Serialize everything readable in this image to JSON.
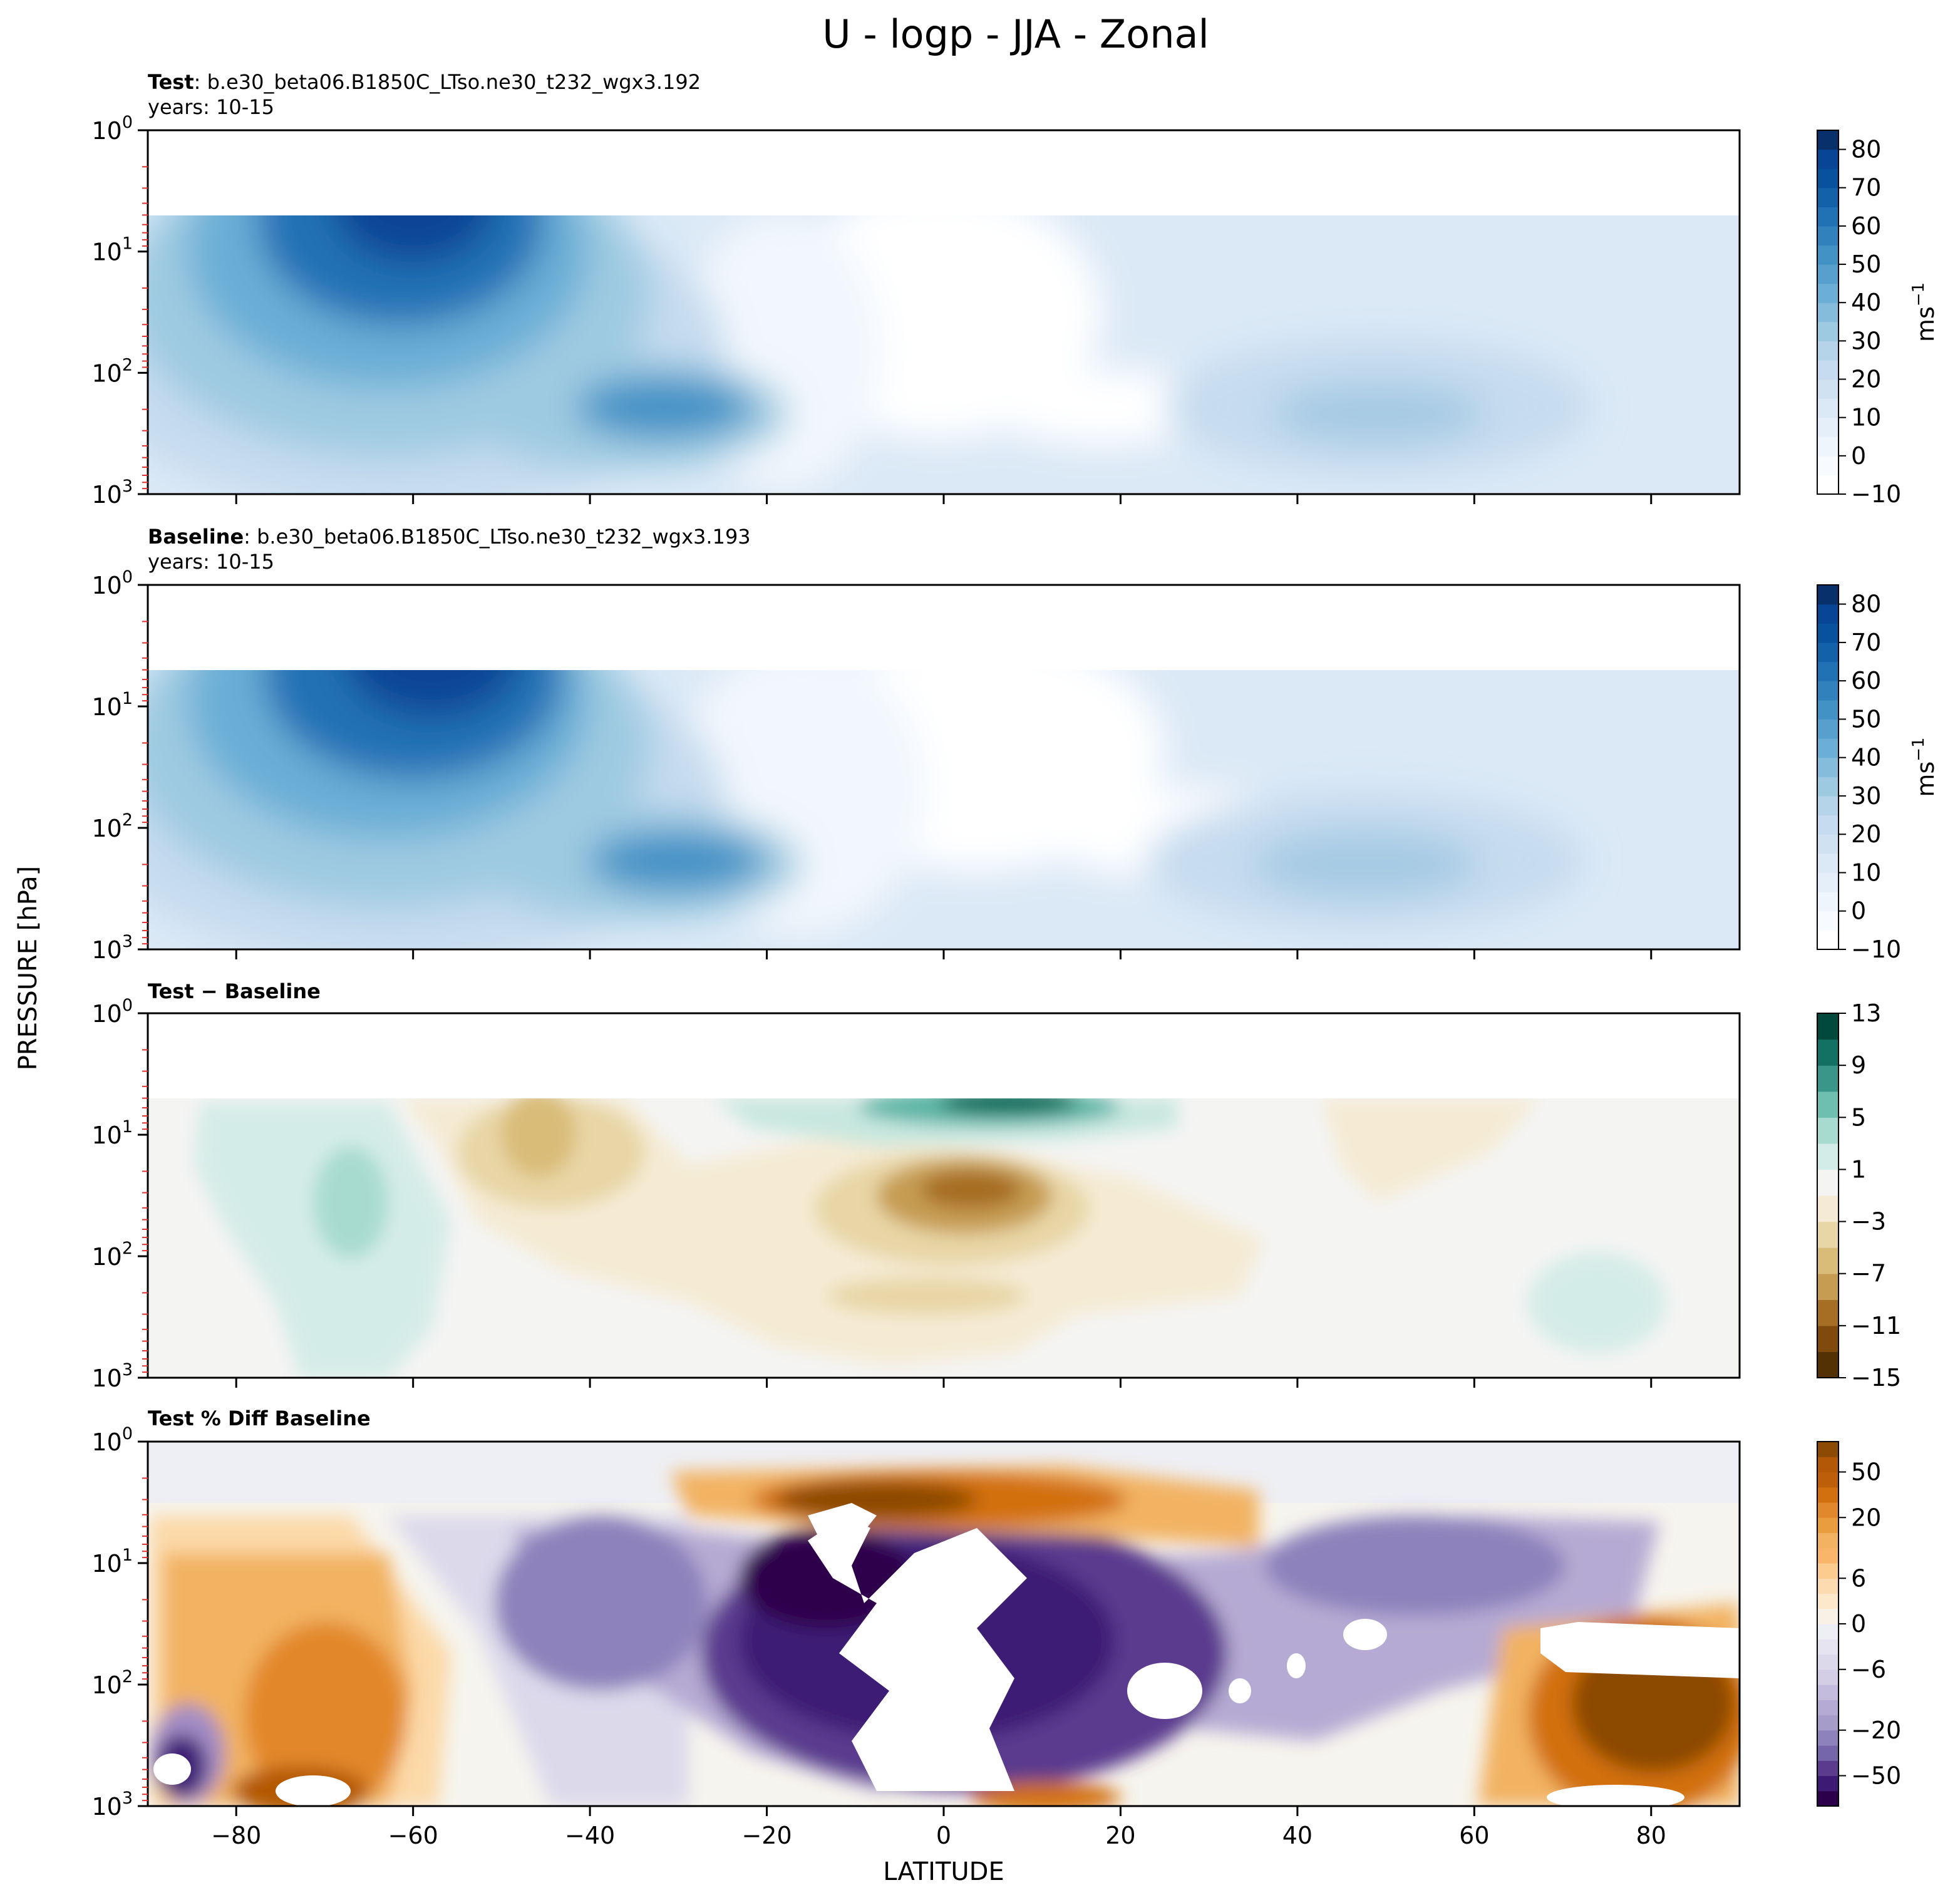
{
  "chart_data": {
    "type": "contour",
    "title": "U - logp - JJA - Zonal",
    "xlabel": "LATITUDE",
    "ylabel": "PRESSURE [hPa]",
    "xlim": [
      -90,
      90
    ],
    "xticks": [
      -80,
      -60,
      -40,
      -20,
      0,
      20,
      40,
      60,
      80
    ],
    "xtick_labels": [
      "−80",
      "−60",
      "−40",
      "−20",
      "0",
      "20",
      "40",
      "60",
      "80"
    ],
    "ylim_hPa": [
      1000,
      1
    ],
    "ytick_labels": [
      {
        "base": "10",
        "exp": "0"
      },
      {
        "base": "10",
        "exp": "1"
      },
      {
        "base": "10",
        "exp": "2"
      },
      {
        "base": "10",
        "exp": "3"
      }
    ],
    "panels": [
      {
        "id": "test",
        "title_bold": "Test",
        "title_rest": ": b.e30_beta06.B1850C_LTso.ne30_t232_wgx3.192",
        "years": "years: 10-15",
        "colormap": "Blues",
        "colorbar_levels": [
          -10,
          -5,
          0,
          5,
          10,
          15,
          20,
          25,
          30,
          35,
          40,
          45,
          50,
          55,
          60,
          65,
          70,
          75,
          80,
          85
        ],
        "colorbar_ticks": [
          {
            "value": -10,
            "label": "−10"
          },
          {
            "value": 0,
            "label": "0"
          },
          {
            "value": 10,
            "label": "10"
          },
          {
            "value": 20,
            "label": "20"
          },
          {
            "value": 30,
            "label": "30"
          },
          {
            "value": 40,
            "label": "40"
          },
          {
            "value": 50,
            "label": "50"
          },
          {
            "value": 60,
            "label": "60"
          },
          {
            "value": 70,
            "label": "70"
          },
          {
            "value": 80,
            "label": "80"
          }
        ],
        "units": {
          "base": "ms",
          "exp": "−1"
        },
        "features": [
          {
            "name": "southern polar night jet",
            "lat": -58,
            "pressure_hPa": 5,
            "value": 80
          },
          {
            "name": "southern subtropical jet",
            "lat": -30,
            "pressure_hPa": 200,
            "value": 45
          },
          {
            "name": "northern subtropical jet",
            "lat": 48,
            "pressure_hPa": 200,
            "value": 25
          }
        ]
      },
      {
        "id": "baseline",
        "title_bold": "Baseline",
        "title_rest": ": b.e30_beta06.B1850C_LTso.ne30_t232_wgx3.193",
        "years": "years: 10-15",
        "colormap": "Blues",
        "colorbar_levels": [
          -10,
          -5,
          0,
          5,
          10,
          15,
          20,
          25,
          30,
          35,
          40,
          45,
          50,
          55,
          60,
          65,
          70,
          75,
          80,
          85
        ],
        "colorbar_ticks": [
          {
            "value": -10,
            "label": "−10"
          },
          {
            "value": 0,
            "label": "0"
          },
          {
            "value": 10,
            "label": "10"
          },
          {
            "value": 20,
            "label": "20"
          },
          {
            "value": 30,
            "label": "30"
          },
          {
            "value": 40,
            "label": "40"
          },
          {
            "value": 50,
            "label": "50"
          },
          {
            "value": 60,
            "label": "60"
          },
          {
            "value": 70,
            "label": "70"
          },
          {
            "value": 80,
            "label": "80"
          }
        ],
        "units": {
          "base": "ms",
          "exp": "−1"
        },
        "features": [
          {
            "name": "southern polar night jet",
            "lat": -58,
            "pressure_hPa": 5,
            "value": 82
          },
          {
            "name": "southern subtropical jet",
            "lat": -30,
            "pressure_hPa": 200,
            "value": 45
          },
          {
            "name": "northern subtropical jet",
            "lat": 47,
            "pressure_hPa": 200,
            "value": 28
          }
        ]
      },
      {
        "id": "diff",
        "title_bold": "Test − Baseline",
        "title_rest": "",
        "years": "",
        "colormap": "BrBG",
        "colorbar_levels": [
          -15,
          -13,
          -11,
          -9,
          -7,
          -5,
          -3,
          -1,
          1,
          3,
          5,
          7,
          9,
          11,
          13
        ],
        "colorbar_ticks": [
          {
            "value": -15,
            "label": "−15"
          },
          {
            "value": -11,
            "label": "−11"
          },
          {
            "value": -7,
            "label": "−7"
          },
          {
            "value": -3,
            "label": "−3"
          },
          {
            "value": 1,
            "label": "1"
          },
          {
            "value": 5,
            "label": "5"
          },
          {
            "value": 9,
            "label": "9"
          },
          {
            "value": 13,
            "label": "13"
          }
        ],
        "units": null,
        "features": [
          {
            "name": "equatorial stratospheric increase",
            "lat": 5,
            "pressure_hPa": 5,
            "value": 11
          },
          {
            "name": "equatorial decrease",
            "lat": 2,
            "pressure_hPa": 30,
            "value": -11
          },
          {
            "name": "southern high-latitude increase",
            "lat": -67,
            "pressure_hPa": 50,
            "value": 4
          }
        ]
      },
      {
        "id": "pctdiff",
        "title_bold": "Test % Diff Baseline",
        "title_rest": "",
        "years": "",
        "colormap": "PuOr",
        "colorbar_levels": [
          -100,
          -75,
          -50,
          -40,
          -30,
          -20,
          -15,
          -10,
          -8,
          -6,
          -4,
          -2,
          0,
          2,
          4,
          6,
          8,
          10,
          15,
          20,
          30,
          40,
          50,
          75,
          100
        ],
        "colorbar_ticks": [
          {
            "value": -50,
            "label": "−50"
          },
          {
            "value": -20,
            "label": "−20"
          },
          {
            "value": -6,
            "label": "−6"
          },
          {
            "value": 0,
            "label": "0"
          },
          {
            "value": 6,
            "label": "6"
          },
          {
            "value": 20,
            "label": "20"
          },
          {
            "value": 50,
            "label": "50"
          }
        ],
        "units": null,
        "features": [
          {
            "name": "equatorial stratospheric increase",
            "lat": 0,
            "pressure_hPa": 5,
            "value": 50
          },
          {
            "name": "tropical decrease",
            "lat": -10,
            "pressure_hPa": 30,
            "value": -50
          },
          {
            "name": "northern polar increase",
            "lat": 75,
            "pressure_hPa": 300,
            "value": 50
          }
        ]
      }
    ]
  }
}
